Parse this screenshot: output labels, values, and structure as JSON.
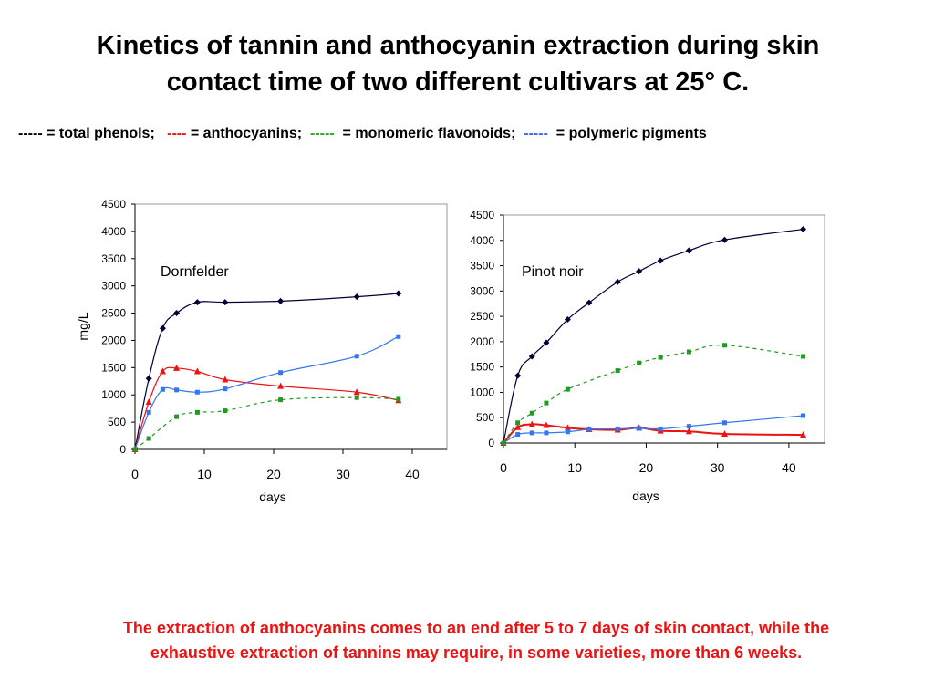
{
  "title": {
    "line1": "Kinetics of tannin and anthocyanin extraction during skin",
    "line2": "contact time of two different cultivars at 25° C."
  },
  "legend": {
    "black_dash": "-----",
    "black_label": "= total phenols;",
    "red_dash": "----",
    "red_label": "= anthocyanins;",
    "green_dash": "-----",
    "green_label": "= monomeric flavonoids;",
    "blue_dash": "-----",
    "blue_label": "= polymeric pigments"
  },
  "footer": {
    "line1": "The extraction of anthocyanins comes to an end after 5 to 7 days of skin contact, while the",
    "line2": "exhaustive extraction of tannins may require, in some varieties, more than 6 weeks."
  },
  "colors": {
    "total_phenols": "#000033",
    "anthocyanins": "#ee1111",
    "monomeric_flavonoids": "#229922",
    "polymeric_pigments": "#3377ee"
  },
  "chart_data": [
    {
      "type": "line",
      "title": "Dornfelder",
      "xlabel": "days",
      "ylabel": "mg/L",
      "xlim": [
        0,
        45
      ],
      "ylim": [
        0,
        4500
      ],
      "xticks": [
        "0",
        "10",
        "20",
        "30",
        "40"
      ],
      "yticks": [
        "0",
        "500",
        "1000",
        "1500",
        "2000",
        "2500",
        "3000",
        "3500",
        "4000",
        "4500"
      ],
      "series": [
        {
          "name": "total phenols",
          "key": "total_phenols",
          "marker": "diamond",
          "dash": "solid",
          "x": [
            0,
            2,
            4,
            6,
            9,
            13,
            21,
            32,
            38
          ],
          "y": [
            0,
            1300,
            2220,
            2500,
            2700,
            2700,
            2720,
            2800,
            2860
          ]
        },
        {
          "name": "anthocyanins",
          "key": "anthocyanins",
          "marker": "triangle",
          "dash": "solid",
          "x": [
            0,
            2,
            4,
            6,
            9,
            13,
            21,
            32,
            38
          ],
          "y": [
            0,
            870,
            1430,
            1490,
            1430,
            1280,
            1160,
            1050,
            900
          ]
        },
        {
          "name": "polymeric pigments",
          "key": "polymeric_pigments",
          "marker": "square",
          "dash": "solid",
          "x": [
            0,
            2,
            4,
            6,
            9,
            13,
            21,
            32,
            38
          ],
          "y": [
            0,
            680,
            1100,
            1090,
            1050,
            1110,
            1410,
            1710,
            2070
          ]
        },
        {
          "name": "monomeric flavonoids",
          "key": "monomeric_flavonoids",
          "marker": "square",
          "dash": "dashed",
          "x": [
            0,
            2,
            6,
            9,
            13,
            21,
            32,
            38
          ],
          "y": [
            0,
            200,
            600,
            680,
            710,
            910,
            950,
            920
          ]
        }
      ]
    },
    {
      "type": "line",
      "title": "Pinot noir",
      "xlabel": "days",
      "ylabel": "",
      "xlim": [
        0,
        45
      ],
      "ylim": [
        0,
        4500
      ],
      "xticks": [
        "0",
        "10",
        "20",
        "30",
        "40"
      ],
      "yticks": [
        "0",
        "500",
        "1000",
        "1500",
        "2000",
        "2500",
        "3000",
        "3500",
        "4000",
        "4500"
      ],
      "series": [
        {
          "name": "total phenols",
          "key": "total_phenols",
          "marker": "diamond",
          "dash": "solid",
          "x": [
            0,
            2,
            4,
            6,
            9,
            12,
            16,
            19,
            22,
            26,
            31,
            42
          ],
          "y": [
            0,
            1330,
            1710,
            1980,
            2440,
            2770,
            3180,
            3390,
            3600,
            3800,
            4010,
            4220
          ]
        },
        {
          "name": "anthocyanins",
          "key": "anthocyanins",
          "marker": "triangle",
          "dash": "solid",
          "x": [
            0,
            2,
            4,
            6,
            9,
            12,
            16,
            19,
            22,
            26,
            31,
            42
          ],
          "y": [
            0,
            310,
            370,
            350,
            300,
            270,
            260,
            300,
            240,
            230,
            180,
            160
          ]
        },
        {
          "name": "polymeric pigments",
          "key": "polymeric_pigments",
          "marker": "square",
          "dash": "solid",
          "x": [
            0,
            2,
            4,
            6,
            9,
            12,
            16,
            19,
            22,
            26,
            31,
            42
          ],
          "y": [
            0,
            170,
            200,
            200,
            220,
            270,
            280,
            290,
            280,
            330,
            400,
            540
          ]
        },
        {
          "name": "monomeric flavonoids",
          "key": "monomeric_flavonoids",
          "marker": "square",
          "dash": "dashed",
          "x": [
            0,
            2,
            4,
            6,
            9,
            16,
            19,
            22,
            26,
            31,
            42
          ],
          "y": [
            0,
            400,
            590,
            790,
            1060,
            1430,
            1580,
            1690,
            1800,
            1930,
            1710
          ]
        }
      ]
    }
  ]
}
